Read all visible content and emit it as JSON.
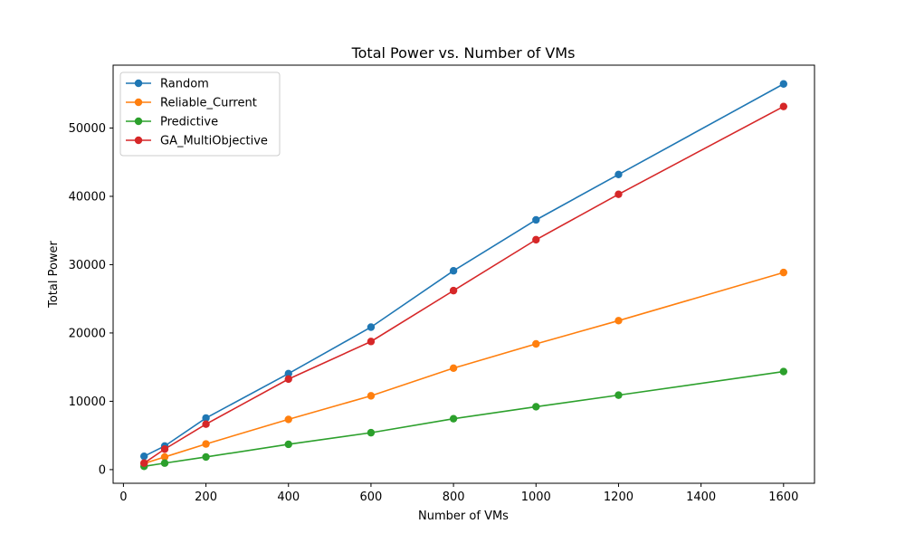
{
  "chart_data": {
    "type": "line",
    "title": "Total Power vs. Number of VMs",
    "xlabel": "Number of VMs",
    "ylabel": "Total Power",
    "x": [
      50,
      100,
      200,
      400,
      600,
      800,
      1000,
      1200,
      1600
    ],
    "xlim": [
      -25,
      1675
    ],
    "ylim": [
      -2000,
      59200
    ],
    "xticks": [
      0,
      200,
      400,
      600,
      800,
      1000,
      1200,
      1400,
      1600
    ],
    "yticks": [
      0,
      10000,
      20000,
      30000,
      40000,
      50000
    ],
    "grid": false,
    "legend_position": "top-left",
    "series": [
      {
        "name": "Random",
        "color": "#1f77b4",
        "values": [
          1950,
          3450,
          7550,
          14050,
          20850,
          29100,
          36550,
          43200,
          56450
        ]
      },
      {
        "name": "Reliable_Current",
        "color": "#ff7f0e",
        "values": [
          900,
          1850,
          3750,
          7350,
          10800,
          14850,
          18400,
          21800,
          28850
        ]
      },
      {
        "name": "Predictive",
        "color": "#2ca02c",
        "values": [
          480,
          950,
          1850,
          3700,
          5400,
          7450,
          9200,
          10900,
          14350
        ]
      },
      {
        "name": "GA_MultiObjective",
        "color": "#d62728",
        "values": [
          950,
          3000,
          6650,
          13250,
          18750,
          26200,
          33650,
          40300,
          53150
        ]
      }
    ]
  }
}
